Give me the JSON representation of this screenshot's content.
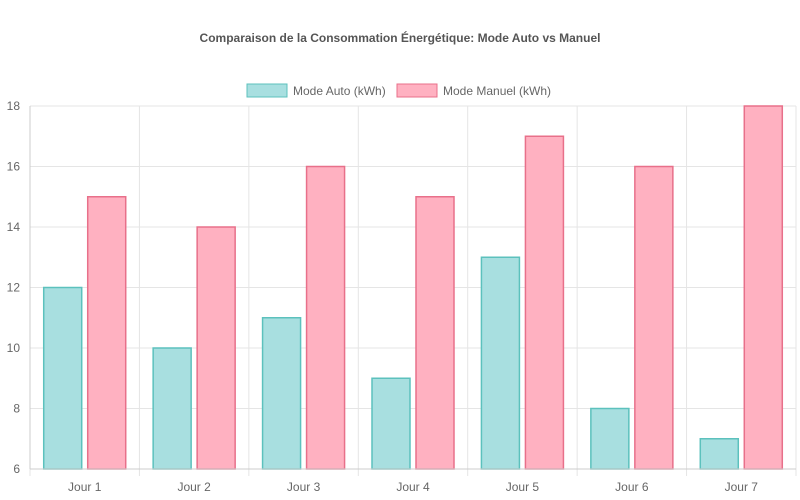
{
  "chart_data": {
    "type": "bar",
    "title": "Comparaison de la Consommation Énergétique: Mode Auto vs Manuel",
    "categories": [
      "Jour 1",
      "Jour 2",
      "Jour 3",
      "Jour 4",
      "Jour 5",
      "Jour 6",
      "Jour 7"
    ],
    "series": [
      {
        "name": "Mode Auto (kWh)",
        "values": [
          12,
          10,
          11,
          9,
          13,
          8,
          7
        ],
        "fill": "#a8dfe0",
        "stroke": "#5cc1bd"
      },
      {
        "name": "Mode Manuel (kWh)",
        "values": [
          15,
          14,
          16,
          15,
          17,
          16,
          18
        ],
        "fill": "#ffb1c1",
        "stroke": "#e8708a"
      }
    ],
    "xlabel": "",
    "ylabel": "",
    "ylim": [
      6,
      18
    ],
    "yticks": [
      6,
      8,
      10,
      12,
      14,
      16,
      18
    ],
    "grid": true,
    "legend_position": "top"
  }
}
